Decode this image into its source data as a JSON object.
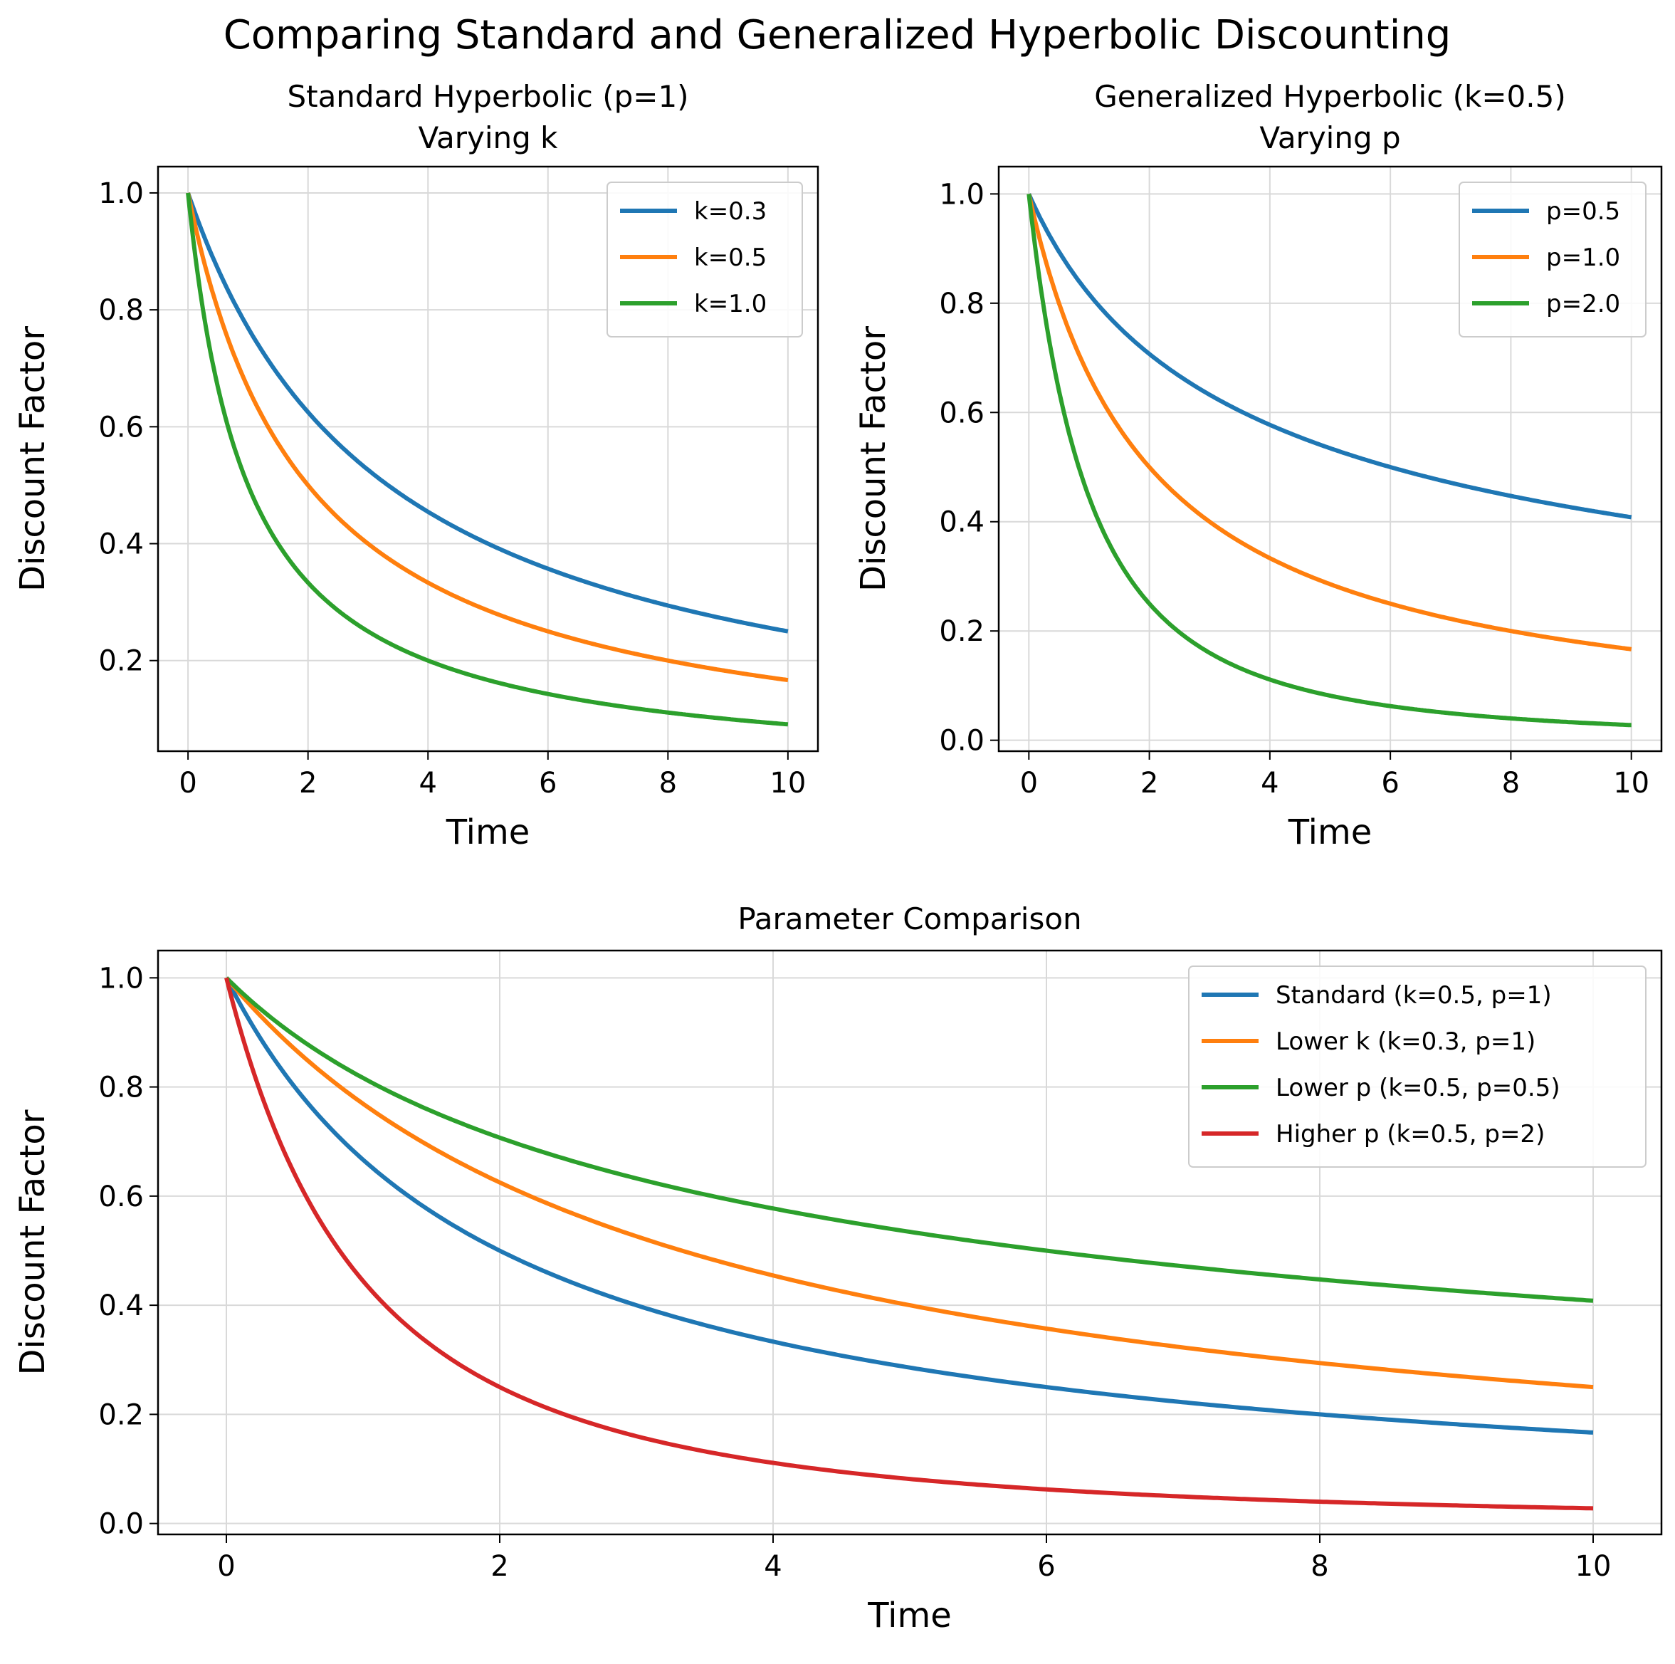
{
  "figure_title": "Comparing Standard and Generalized Hyperbolic Discounting",
  "colors": {
    "blue": "#1f77b4",
    "orange": "#ff7f0e",
    "green": "#2ca02c",
    "red": "#d62728",
    "grid": "#d9d9d9",
    "axis": "#000000"
  },
  "chart_data": [
    {
      "id": "standard",
      "type": "line",
      "title": [
        "Standard Hyperbolic (p=1)",
        "Varying k"
      ],
      "xlabel": "Time",
      "ylabel": "Discount Factor",
      "xlim": [
        -0.5,
        10.5
      ],
      "ylim": [
        0.045,
        1.045
      ],
      "xticks": [
        0,
        2,
        4,
        6,
        8,
        10
      ],
      "yticks": [
        0.2,
        0.4,
        0.6,
        0.8,
        1.0
      ],
      "grid": true,
      "legend_position": "upper right",
      "x": [
        0,
        0.5,
        1,
        1.5,
        2,
        3,
        4,
        5,
        6,
        7,
        8,
        9,
        10
      ],
      "series": [
        {
          "name": "k=0.3",
          "color": "blue",
          "k": 0.3,
          "p": 1,
          "values": [
            1.0,
            0.87,
            0.769,
            0.69,
            0.625,
            0.526,
            0.455,
            0.4,
            0.357,
            0.323,
            0.294,
            0.27,
            0.25
          ]
        },
        {
          "name": "k=0.5",
          "color": "orange",
          "k": 0.5,
          "p": 1,
          "values": [
            1.0,
            0.8,
            0.667,
            0.571,
            0.5,
            0.4,
            0.333,
            0.286,
            0.25,
            0.222,
            0.2,
            0.182,
            0.167
          ]
        },
        {
          "name": "k=1.0",
          "color": "green",
          "k": 1.0,
          "p": 1,
          "values": [
            1.0,
            0.667,
            0.5,
            0.4,
            0.333,
            0.25,
            0.2,
            0.167,
            0.143,
            0.125,
            0.111,
            0.1,
            0.091
          ]
        }
      ]
    },
    {
      "id": "generalized",
      "type": "line",
      "title": [
        "Generalized Hyperbolic (k=0.5)",
        "Varying p"
      ],
      "xlabel": "Time",
      "ylabel": "Discount Factor",
      "xlim": [
        -0.5,
        10.5
      ],
      "ylim": [
        -0.02,
        1.05
      ],
      "xticks": [
        0,
        2,
        4,
        6,
        8,
        10
      ],
      "yticks": [
        0.0,
        0.2,
        0.4,
        0.6,
        0.8,
        1.0
      ],
      "grid": true,
      "legend_position": "upper right",
      "x": [
        0,
        0.5,
        1,
        1.5,
        2,
        3,
        4,
        5,
        6,
        7,
        8,
        9,
        10
      ],
      "series": [
        {
          "name": "p=0.5",
          "color": "blue",
          "k": 0.5,
          "p": 0.5,
          "values": [
            1.0,
            0.894,
            0.816,
            0.756,
            0.707,
            0.632,
            0.577,
            0.535,
            0.5,
            0.471,
            0.447,
            0.426,
            0.408
          ]
        },
        {
          "name": "p=1.0",
          "color": "orange",
          "k": 0.5,
          "p": 1.0,
          "values": [
            1.0,
            0.8,
            0.667,
            0.571,
            0.5,
            0.4,
            0.333,
            0.286,
            0.25,
            0.222,
            0.2,
            0.182,
            0.167
          ]
        },
        {
          "name": "p=2.0",
          "color": "green",
          "k": 0.5,
          "p": 2.0,
          "values": [
            1.0,
            0.64,
            0.444,
            0.327,
            0.25,
            0.16,
            0.111,
            0.082,
            0.063,
            0.049,
            0.04,
            0.033,
            0.028
          ]
        }
      ]
    },
    {
      "id": "comparison",
      "type": "line",
      "title": [
        "Parameter Comparison"
      ],
      "xlabel": "Time",
      "ylabel": "Discount Factor",
      "xlim": [
        -0.5,
        10.5
      ],
      "ylim": [
        -0.02,
        1.05
      ],
      "xticks": [
        0,
        2,
        4,
        6,
        8,
        10
      ],
      "yticks": [
        0.0,
        0.2,
        0.4,
        0.6,
        0.8,
        1.0
      ],
      "grid": true,
      "legend_position": "upper right",
      "x": [
        0,
        0.5,
        1,
        1.5,
        2,
        3,
        4,
        5,
        6,
        7,
        8,
        9,
        10
      ],
      "series": [
        {
          "name": "Standard (k=0.5, p=1)",
          "color": "blue",
          "k": 0.5,
          "p": 1,
          "values": [
            1.0,
            0.8,
            0.667,
            0.571,
            0.5,
            0.4,
            0.333,
            0.286,
            0.25,
            0.222,
            0.2,
            0.182,
            0.167
          ]
        },
        {
          "name": "Lower k (k=0.3, p=1)",
          "color": "orange",
          "k": 0.3,
          "p": 1,
          "values": [
            1.0,
            0.87,
            0.769,
            0.69,
            0.625,
            0.526,
            0.455,
            0.4,
            0.357,
            0.323,
            0.294,
            0.27,
            0.25
          ]
        },
        {
          "name": "Lower p (k=0.5, p=0.5)",
          "color": "green",
          "k": 0.5,
          "p": 0.5,
          "values": [
            1.0,
            0.894,
            0.816,
            0.756,
            0.707,
            0.632,
            0.577,
            0.535,
            0.5,
            0.471,
            0.447,
            0.426,
            0.408
          ]
        },
        {
          "name": "Higher p (k=0.5, p=2)",
          "color": "red",
          "k": 0.5,
          "p": 2,
          "values": [
            1.0,
            0.64,
            0.444,
            0.327,
            0.25,
            0.16,
            0.111,
            0.082,
            0.063,
            0.049,
            0.04,
            0.033,
            0.028
          ]
        }
      ]
    }
  ]
}
